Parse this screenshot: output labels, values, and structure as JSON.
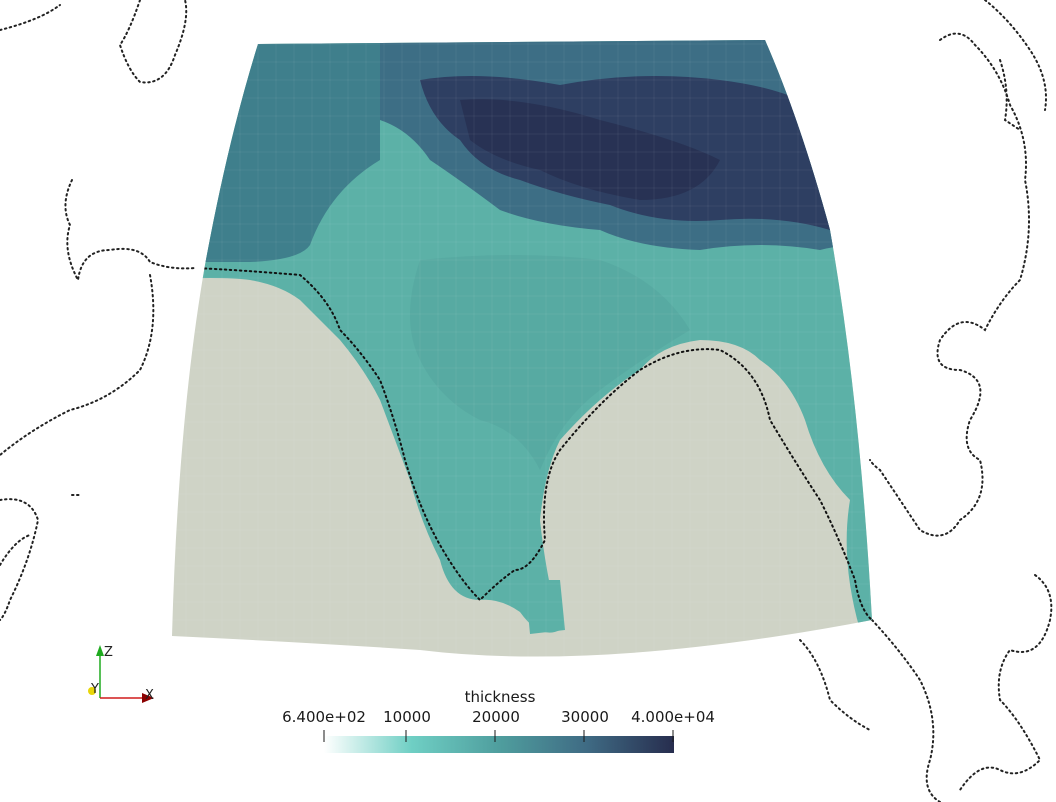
{
  "scalar_bar": {
    "title": "thickness",
    "ticks": [
      {
        "label": "6.400e+02",
        "value": 640
      },
      {
        "label": "10000",
        "value": 10000
      },
      {
        "label": "20000",
        "value": 20000
      },
      {
        "label": "30000",
        "value": 30000
      },
      {
        "label": "4.000e+04",
        "value": 40000
      }
    ],
    "range": [
      640,
      40000
    ],
    "colormap": [
      "#ffffff",
      "#6fcfc4",
      "#4f9e9e",
      "#3f6b84",
      "#272d4e"
    ]
  },
  "axes_orientation": {
    "x_label": "X",
    "y_label": "Y",
    "z_label": "Z",
    "colors": {
      "x": "#d11b1b",
      "y": "#e8d60a",
      "z": "#1faa1f"
    }
  },
  "map_colors": {
    "ocean": "#cfd3c6",
    "land": "#5cb1a7",
    "highland": "#3f7f8c",
    "plateau": "#2e3f62"
  }
}
